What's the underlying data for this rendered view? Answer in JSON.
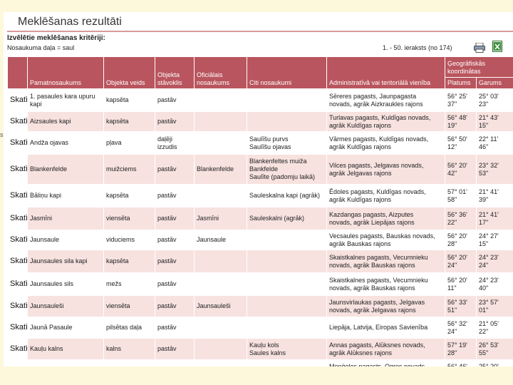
{
  "page": {
    "title": "Meklēšanas rezultāti",
    "criteria_heading": "Izvēlētie meklēšanas kritēriji:",
    "criteria_value": "Nosaukuma daļa = saul",
    "record_range": "1. - 50. ieraksts (no 174)",
    "edge_mark": "s",
    "icons": [
      "print-icon",
      "excel-export-icon"
    ]
  },
  "table": {
    "headers": {
      "main_name": "Pamatnosaukums",
      "object_type": "Objekta veids",
      "object_status": "Objekta stāvoklis",
      "official_name": "Oficiālais nosaukums",
      "other_names": "Citi nosaukumi",
      "admin_unit": "Administratīvā vai teritoriālā vienība",
      "geo_coords": "Ģeogrāfiskās koordinātas",
      "latitude": "Platums",
      "longitude": "Garums"
    },
    "show_label": "Skatīt",
    "rows": [
      {
        "name": "1. pasaules kara upuru\nkapi",
        "type": "kapsēta",
        "status": "pastāv",
        "official": "",
        "other": "",
        "admin": "Sēreres pagasts, Jaunpagasta\nnovads, agrāk Aizkraukles rajons",
        "lat": "56° 25'\n37\"",
        "lon": "25° 03'\n23\""
      },
      {
        "name": "Aizsaules kapi",
        "type": "kapsēta",
        "status": "pastāv",
        "official": "",
        "other": "",
        "admin": "Turlavas pagasts, Kuldīgas novads,\nagrāk Kuldīgas rajons",
        "lat": "56° 48'\n19\"",
        "lon": "21° 43'\n15\""
      },
      {
        "name": "Andža ojavas",
        "type": "pļava",
        "status": "daļēji\nizzudis",
        "official": "",
        "other": "Saulīšu purvs\nSaulīšu ojavas",
        "admin": "Vārmes pagasts, Kuldīgas novads,\nagrāk Kuldīgas rajons",
        "lat": "56° 50'\n12\"",
        "lon": "22° 11'\n46\""
      },
      {
        "name": "Blankenfelde",
        "type": "muižciems",
        "status": "pastāv",
        "official": "Blankenfelde",
        "other": "Blankenfeltes muiža\nBankfelde\nSaulīte (padomju laikā)",
        "admin": "Vilces pagasts, Jelgavas novads,\nagrāk Jelgavas rajons",
        "lat": "56° 20'\n42\"",
        "lon": "23° 32'\n53\""
      },
      {
        "name": "Bāliņu kapi",
        "type": "kapsēta",
        "status": "pastāv",
        "official": "",
        "other": "Sauleskalna kapi (agrāk)",
        "admin": "Ēdoles pagasts, Kuldīgas novads,\nagrāk Kuldīgas rajons",
        "lat": "57° 01'\n58\"",
        "lon": "21° 41'\n39\""
      },
      {
        "name": "Jasmīni",
        "type": "viensēta",
        "status": "pastāv",
        "official": "Jasmīni",
        "other": "Sauleskalni (agrāk)",
        "admin": "Kazdangas pagasts, Aizputes\nnovads, agrāk Liepājas rajons",
        "lat": "56° 36'\n22\"",
        "lon": "21° 41'\n17\""
      },
      {
        "name": "Jaunsaule",
        "type": "viduciems",
        "status": "pastāv",
        "official": "Jaunsaule",
        "other": "",
        "admin": "Vecsaules pagasts, Bauskas novads,\nagrāk Bauskas rajons",
        "lat": "56° 20'\n28\"",
        "lon": "24° 27'\n15\""
      },
      {
        "name": "Jaunsaules sila kapi",
        "type": "kapsēta",
        "status": "pastāv",
        "official": "",
        "other": "",
        "admin": "Skaistkalnes pagasts, Vecumnieku\nnovads, agrāk Bauskas rajons",
        "lat": "56° 20'\n24\"",
        "lon": "24° 23'\n24\""
      },
      {
        "name": "Jaunsaules sils",
        "type": "mežs",
        "status": "pastāv",
        "official": "",
        "other": "",
        "admin": "Skaistkalnes pagasts, Vecumnieku\nnovads, agrāk Bauskas rajons",
        "lat": "56° 20'\n11\"",
        "lon": "24° 23'\n40\""
      },
      {
        "name": "Jaunsauleši",
        "type": "viensēta",
        "status": "pastāv",
        "official": "Jaunsauleši",
        "other": "",
        "admin": "Jaunsvirlaukas pagasts, Jelgavas\nnovads, agrāk Jelgavas rajons",
        "lat": "56° 33'\n51\"",
        "lon": "23° 57'\n01\""
      },
      {
        "name": "Jaunā Pasaule",
        "type": "pilsētas daļa",
        "status": "pastāv",
        "official": "",
        "other": "",
        "admin": "Liepāja, Latvija, Eiropas Savienība",
        "lat": "56° 32'\n24\"",
        "lon": "21° 05'\n22\""
      },
      {
        "name": "Kauļu kalns",
        "type": "kalns",
        "status": "pastāv",
        "official": "",
        "other": "Kauļu kols\nSaules kalns",
        "admin": "Annas pagasts, Alūksnes novads,\nagrāk Alūksnes rajons",
        "lat": "57° 19'\n28\"",
        "lon": "26° 53'\n55\""
      },
      {
        "name": "",
        "type": "",
        "status": "",
        "official": "",
        "other": "",
        "admin": "Meņģeles pagasts, Ogres novads,",
        "lat": "56° 46'",
        "lon": "25° 20'"
      }
    ]
  },
  "colors": {
    "header_bg": "#b9555e",
    "row_alt_bg": "#f7e2e0",
    "page_bg": "#fdf8dc"
  }
}
